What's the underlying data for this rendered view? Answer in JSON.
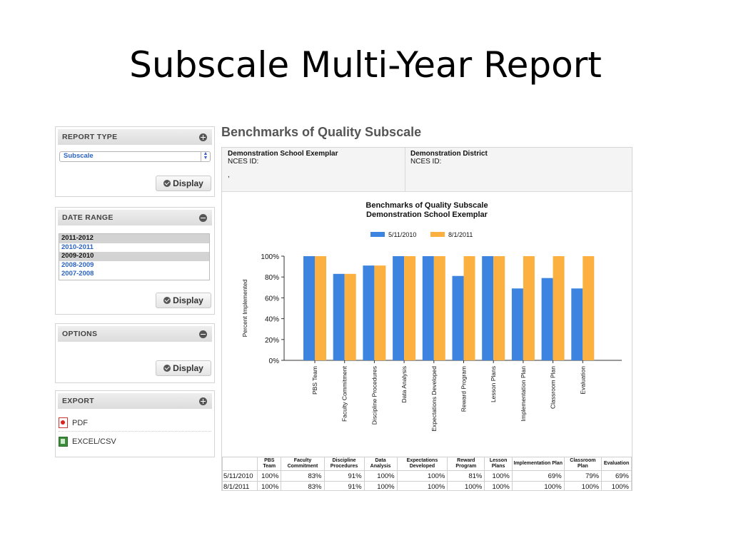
{
  "slide": {
    "title": "Subscale Multi-Year Report"
  },
  "report_type": {
    "header": "REPORT TYPE",
    "selected": "Subscale",
    "display_label": "Display"
  },
  "date_range": {
    "header": "DATE RANGE",
    "items": [
      {
        "label": "2011-2012",
        "selected": true
      },
      {
        "label": "2010-2011",
        "selected": false
      },
      {
        "label": "2009-2010",
        "selected": true
      },
      {
        "label": "2008-2009",
        "selected": false
      },
      {
        "label": "2007-2008",
        "selected": false
      }
    ],
    "display_label": "Display"
  },
  "options": {
    "header": "OPTIONS",
    "display_label": "Display"
  },
  "export": {
    "header": "EXPORT",
    "pdf_label": "PDF",
    "excel_label": "EXCEL/CSV"
  },
  "content": {
    "title": "Benchmarks of Quality Subscale",
    "school": {
      "name": "Demonstration School Exemplar",
      "nces": "NCES ID:",
      "extra": ","
    },
    "district": {
      "name": "Demonstration District",
      "nces": "NCES ID:"
    }
  },
  "chart_data": {
    "type": "bar",
    "title": "Benchmarks of Quality Subscale",
    "subtitle": "Demonstration School Exemplar",
    "ylabel": "Percent Implemented",
    "xlabel": "",
    "ylim": [
      0,
      100
    ],
    "yticks": [
      "0%",
      "20%",
      "40%",
      "60%",
      "80%",
      "100%"
    ],
    "grid": false,
    "legend": "top",
    "categories": [
      "PBS Team",
      "Faculty Commitment",
      "Discipline Procedures",
      "Data Analysis",
      "Expectations Developed",
      "Reward Program",
      "Lesson Plans",
      "Implementation Plan",
      "Classroom Plan",
      "Evaluation"
    ],
    "series": [
      {
        "name": "5/11/2010",
        "color": "#3c84e0",
        "values": [
          100,
          83,
          91,
          100,
          100,
          81,
          100,
          69,
          79,
          69
        ]
      },
      {
        "name": "8/1/2011",
        "color": "#fbb040",
        "values": [
          100,
          83,
          91,
          100,
          100,
          100,
          100,
          100,
          100,
          100
        ]
      }
    ]
  },
  "table": {
    "headers": [
      "PBS Team",
      "Faculty Commitment",
      "Discipline Procedures",
      "Data Analysis",
      "Expectations Developed",
      "Reward Program",
      "Lesson Plans",
      "Implementation Plan",
      "Classroom Plan",
      "Evaluation"
    ],
    "rows": [
      {
        "label": "5/11/2010",
        "values": [
          "100%",
          "83%",
          "91%",
          "100%",
          "100%",
          "81%",
          "100%",
          "69%",
          "79%",
          "69%"
        ]
      },
      {
        "label": "8/1/2011",
        "values": [
          "100%",
          "83%",
          "91%",
          "100%",
          "100%",
          "100%",
          "100%",
          "100%",
          "100%",
          "100%"
        ]
      }
    ]
  }
}
